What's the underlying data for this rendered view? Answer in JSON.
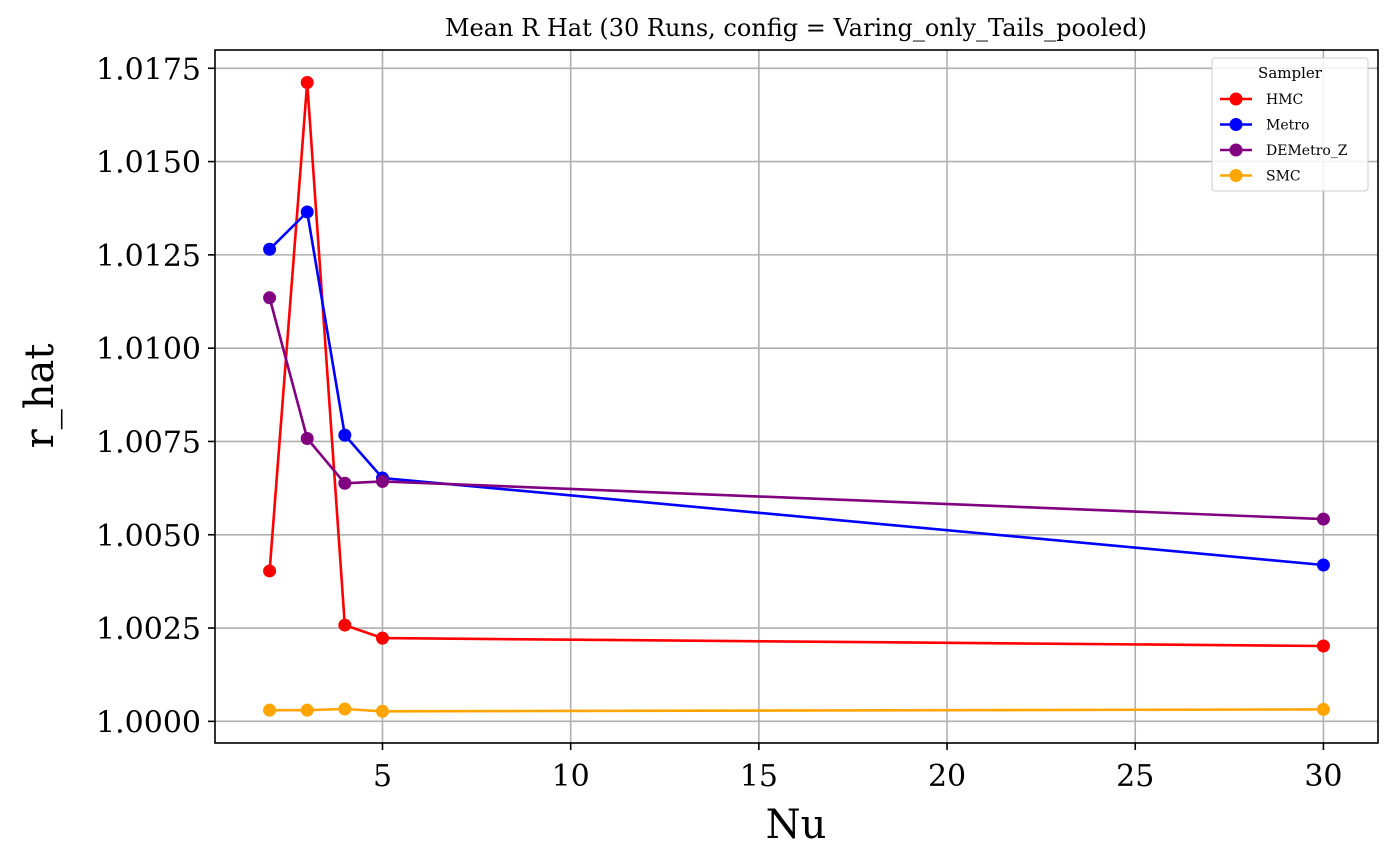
{
  "chart_data": {
    "type": "line",
    "title": "Mean R Hat (30 Runs, config = Varing_only_Tails_pooled)",
    "xlabel": "Nu",
    "ylabel": "r_hat",
    "x": [
      2,
      3,
      4,
      5,
      30
    ],
    "xlim": [
      0.55,
      31.45
    ],
    "ylim": [
      0.99942,
      1.01799
    ],
    "xticks": [
      5,
      10,
      15,
      20,
      25,
      30
    ],
    "xtick_labels": [
      "5",
      "10",
      "15",
      "20",
      "25",
      "30"
    ],
    "yticks": [
      1.0,
      1.0025,
      1.005,
      1.0075,
      1.01,
      1.0125,
      1.015,
      1.0175
    ],
    "ytick_labels": [
      "1.0000",
      "1.0025",
      "1.0050",
      "1.0075",
      "1.0100",
      "1.0125",
      "1.0150",
      "1.0175"
    ],
    "grid": true,
    "legend": {
      "title": "Sampler",
      "placement": "top-right"
    },
    "series": [
      {
        "name": "HMC",
        "color": "#ff0000",
        "values": [
          1.00403,
          1.01712,
          1.00258,
          1.00223,
          1.00202
        ]
      },
      {
        "name": "Metro",
        "color": "#0000ff",
        "values": [
          1.01265,
          1.01365,
          1.00767,
          1.00652,
          1.00419
        ]
      },
      {
        "name": "DEMetro_Z",
        "color": "#800080",
        "values": [
          1.01135,
          1.00758,
          1.00638,
          1.00643,
          1.00542
        ]
      },
      {
        "name": "SMC",
        "color": "#ffa500",
        "values": [
          1.0003,
          1.0003,
          1.00033,
          1.00027,
          1.00032
        ]
      }
    ]
  }
}
